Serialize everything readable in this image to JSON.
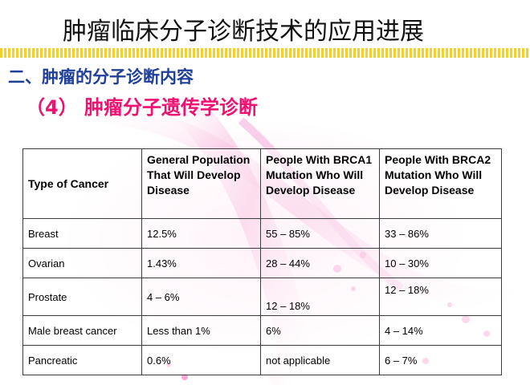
{
  "slide": {
    "title": "肿瘤临床分子诊断技术的应用进展",
    "section_heading": "二、肿瘤的分子诊断内容",
    "subsection_heading": "（4） 肿瘤分子遗传学诊断"
  },
  "colors": {
    "title_rule": "#f5cf2a",
    "section_heading": "#1f3f99",
    "subsection_heading": "#ee1170",
    "background_accent": "#f7a8d6"
  },
  "table": {
    "headers": [
      "Type of Cancer",
      "General Population That Will Develop Disease",
      "People With BRCA1 Mutation Who Will Develop Disease",
      "People With BRCA2 Mutation Who Will Develop Disease"
    ],
    "rows": [
      [
        "Breast",
        "12.5%",
        "55 – 85%",
        "33 – 86%"
      ],
      [
        "Ovarian",
        "1.43%",
        "28 – 44%",
        "10 – 30%"
      ],
      [
        "Prostate",
        "4 – 6%",
        "12 – 18%",
        "12 – 18%"
      ],
      [
        "Male breast cancer",
        "Less than 1%",
        "6%",
        "4 – 14%"
      ],
      [
        "Pancreatic",
        "0.6%",
        "not applicable",
        "6 – 7%"
      ]
    ]
  }
}
